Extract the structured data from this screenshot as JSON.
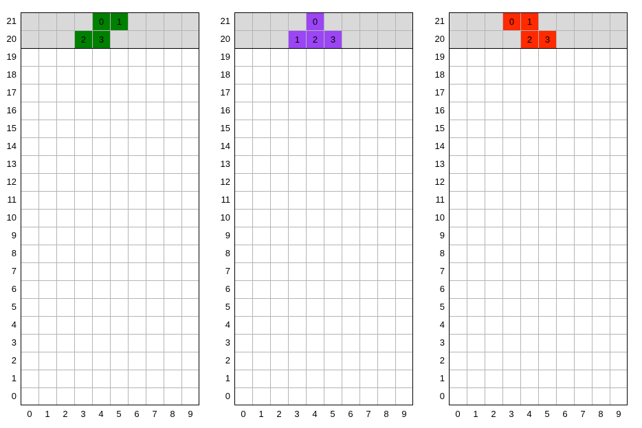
{
  "grid": {
    "columns": 10,
    "rows": 22,
    "spawn_rows": [
      20,
      21
    ],
    "col_labels": [
      "0",
      "1",
      "2",
      "3",
      "4",
      "5",
      "6",
      "7",
      "8",
      "9"
    ],
    "row_labels": [
      "21",
      "20",
      "19",
      "18",
      "17",
      "16",
      "15",
      "14",
      "13",
      "12",
      "11",
      "10",
      "9",
      "8",
      "7",
      "6",
      "5",
      "4",
      "3",
      "2",
      "1",
      "0"
    ],
    "colors": {
      "spawn_zone": "#d9d9d9",
      "empty_cell": "#ffffff",
      "grid_line": "#b4b4b4",
      "border": "#000000"
    }
  },
  "boards": [
    {
      "piece": "S",
      "color": "#008000",
      "blocks": [
        {
          "label": "0",
          "col": 4,
          "row": 21
        },
        {
          "label": "1",
          "col": 5,
          "row": 21
        },
        {
          "label": "2",
          "col": 3,
          "row": 20
        },
        {
          "label": "3",
          "col": 4,
          "row": 20
        }
      ]
    },
    {
      "piece": "T",
      "color": "#9b45f5",
      "blocks": [
        {
          "label": "0",
          "col": 4,
          "row": 21
        },
        {
          "label": "1",
          "col": 3,
          "row": 20
        },
        {
          "label": "2",
          "col": 4,
          "row": 20
        },
        {
          "label": "3",
          "col": 5,
          "row": 20
        }
      ]
    },
    {
      "piece": "Z",
      "color": "#ff2a00",
      "blocks": [
        {
          "label": "0",
          "col": 3,
          "row": 21
        },
        {
          "label": "1",
          "col": 4,
          "row": 21
        },
        {
          "label": "2",
          "col": 4,
          "row": 20
        },
        {
          "label": "3",
          "col": 5,
          "row": 20
        }
      ]
    }
  ]
}
